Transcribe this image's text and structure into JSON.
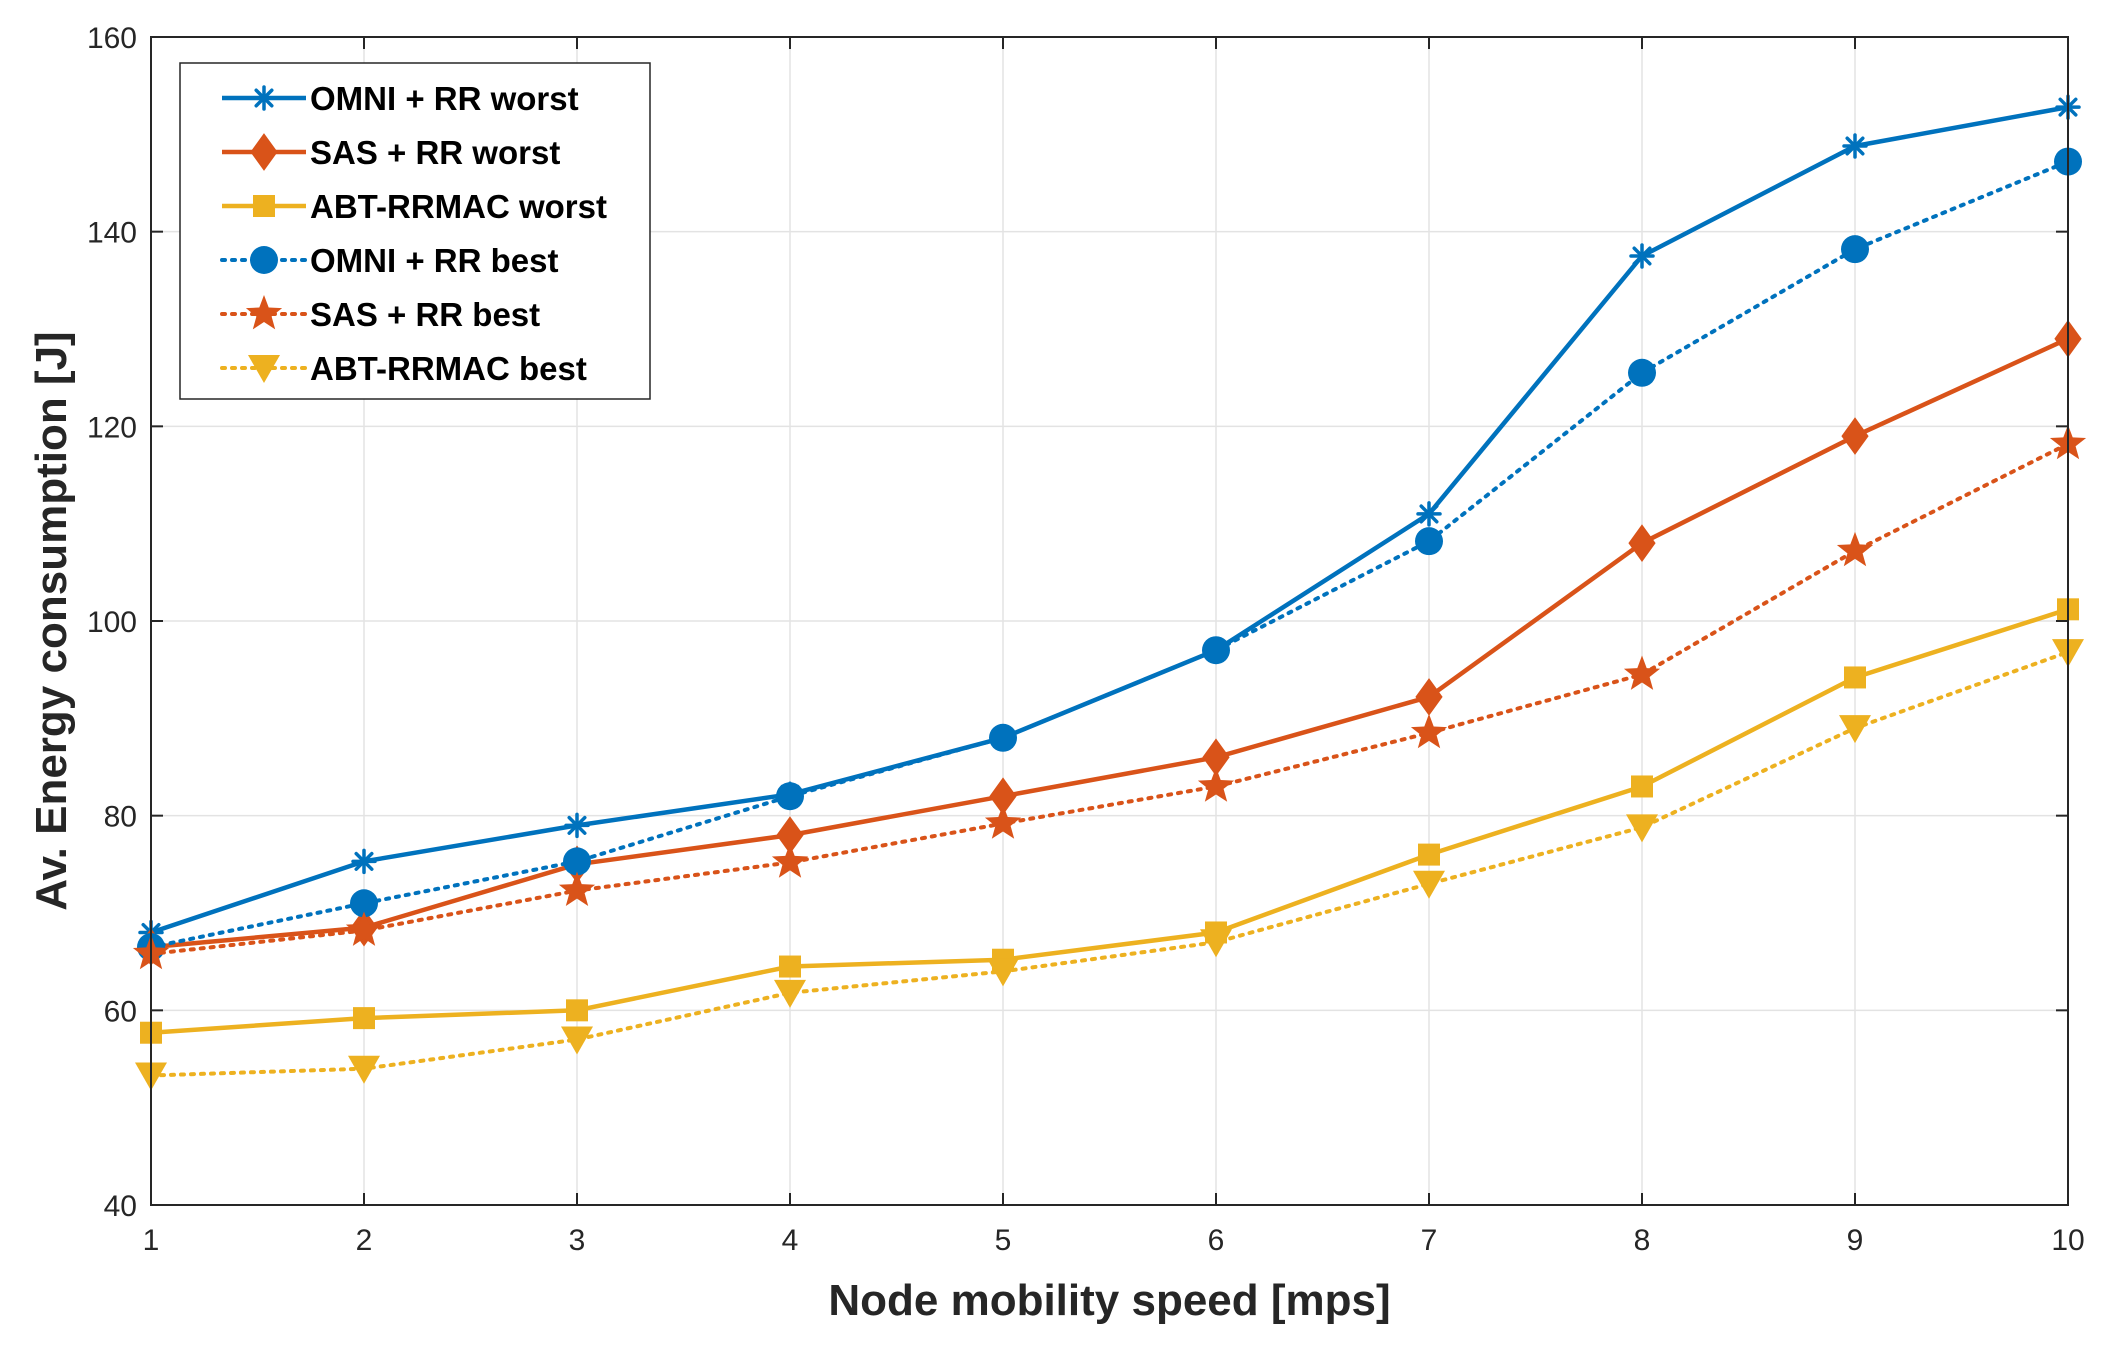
{
  "chart_data": {
    "type": "line",
    "title": "",
    "xlabel": "Node mobility speed [mps]",
    "ylabel": "Av. Energy consumption [J]",
    "xlim": [
      1,
      10
    ],
    "ylim": [
      40,
      160
    ],
    "xticks": [
      1,
      2,
      3,
      4,
      5,
      6,
      7,
      8,
      9,
      10
    ],
    "yticks": [
      40,
      60,
      80,
      100,
      120,
      140,
      160
    ],
    "grid": true,
    "legend_position": "top-left",
    "x": [
      1,
      2,
      3,
      4,
      5,
      6,
      7,
      8,
      9,
      10
    ],
    "series": [
      {
        "name": "OMNI + RR worst",
        "color": "#0072BD",
        "line_style": "solid",
        "marker": "asterisk",
        "values": [
          68.0,
          75.3,
          79.0,
          82.2,
          88.0,
          97.0,
          111.0,
          137.5,
          148.8,
          152.8
        ]
      },
      {
        "name": "SAS + RR worst",
        "color": "#D95319",
        "line_style": "solid",
        "marker": "diamond",
        "values": [
          66.5,
          68.5,
          75.0,
          78.0,
          82.0,
          86.0,
          92.2,
          108.0,
          119.0,
          129.0
        ]
      },
      {
        "name": "ABT-RRMAC worst",
        "color": "#EDB120",
        "line_style": "solid",
        "marker": "square",
        "values": [
          57.7,
          59.2,
          60.0,
          64.5,
          65.2,
          68.0,
          76.0,
          83.0,
          94.2,
          101.2
        ]
      },
      {
        "name": "OMNI + RR best",
        "color": "#0072BD",
        "line_style": "dotted",
        "marker": "circle",
        "values": [
          66.5,
          71.0,
          75.3,
          82.0,
          88.0,
          97.0,
          108.2,
          125.5,
          138.2,
          147.2
        ]
      },
      {
        "name": "SAS + RR best",
        "color": "#D95319",
        "line_style": "dotted",
        "marker": "star",
        "values": [
          65.8,
          68.2,
          72.3,
          75.2,
          79.2,
          83.0,
          88.5,
          94.5,
          107.2,
          118.2
        ]
      },
      {
        "name": "ABT-RRMAC best",
        "color": "#EDB120",
        "line_style": "dotted",
        "marker": "triangle-down",
        "values": [
          53.3,
          54.0,
          57.0,
          61.8,
          64.0,
          67.0,
          73.0,
          78.8,
          89.0,
          96.8
        ]
      }
    ]
  }
}
